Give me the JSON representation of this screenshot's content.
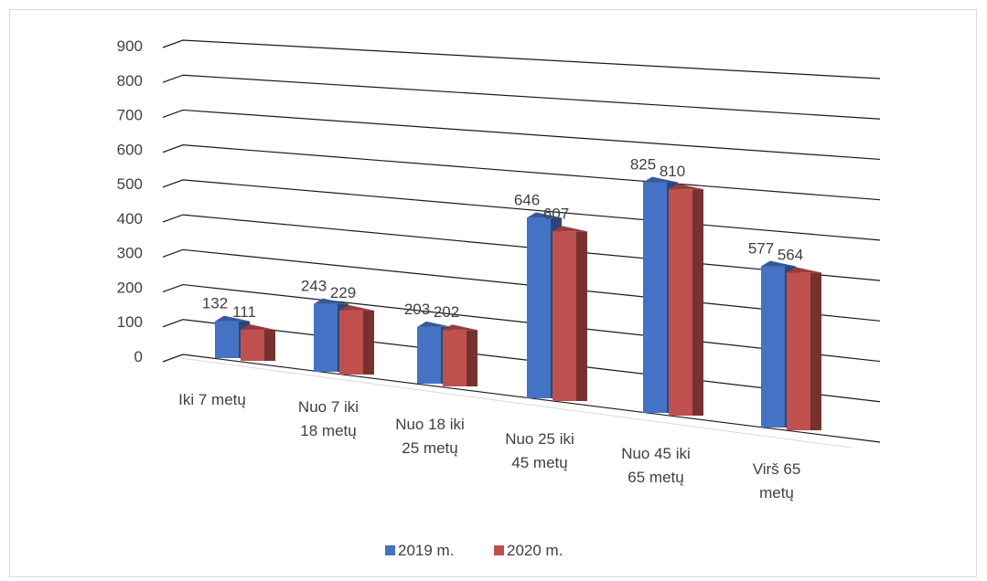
{
  "chart_data": {
    "type": "bar",
    "style": "3d-clustered-column",
    "categories": [
      [
        "Iki 7 metų"
      ],
      [
        "Nuo 7 iki",
        "18 metų"
      ],
      [
        "Nuo 18 iki",
        "25 metų"
      ],
      [
        "Nuo 25 iki",
        "45 metų"
      ],
      [
        "Nuo 45 iki",
        "65 metų"
      ],
      [
        "Virš 65",
        "metų"
      ]
    ],
    "series": [
      {
        "name": "2019 m.",
        "color": "#4472C4",
        "values": [
          132,
          243,
          203,
          646,
          825,
          577
        ]
      },
      {
        "name": "2020 m.",
        "color": "#C0504D",
        "values": [
          111,
          229,
          202,
          607,
          810,
          564
        ]
      }
    ],
    "y_ticks": [
      "0",
      "100",
      "200",
      "300",
      "400",
      "500",
      "600",
      "700",
      "800",
      "900"
    ],
    "ylim": [
      0,
      900
    ],
    "grid": true,
    "legend_position": "bottom"
  }
}
